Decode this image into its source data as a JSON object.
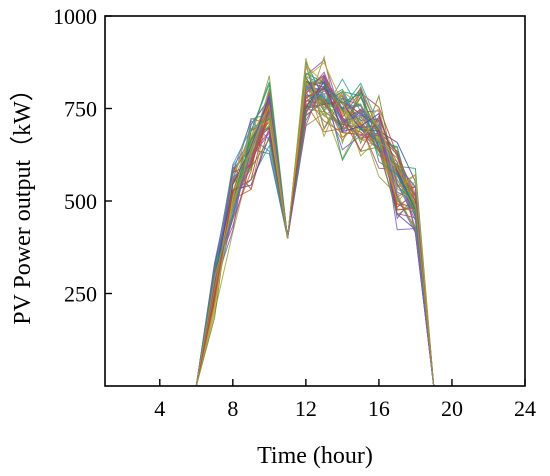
{
  "chart_data": {
    "type": "line",
    "xlabel": "Time (hour)",
    "ylabel": "PV Power output（kW）",
    "xlim": [
      1,
      24
    ],
    "ylim": [
      0,
      1000
    ],
    "xticks": [
      4,
      8,
      12,
      16,
      20,
      24
    ],
    "yticks": [
      250,
      500,
      750,
      1000
    ],
    "grid": false,
    "legend": "none",
    "x": [
      6,
      7,
      8,
      9,
      10,
      11,
      12,
      13,
      14,
      15,
      16,
      17,
      18,
      19
    ],
    "series_count": 60,
    "series_colors": [
      "#5b6fd6",
      "#8a9a3a",
      "#c06a2a",
      "#3aa0a0",
      "#b04a7a",
      "#6a8a2a",
      "#d0a030",
      "#4a4aa0",
      "#2a9a5a",
      "#c04040",
      "#7a5ac0",
      "#a0a040"
    ],
    "series_band": {
      "min": [
        0,
        150,
        380,
        480,
        600,
        400,
        680,
        640,
        590,
        580,
        560,
        400,
        380,
        0
      ],
      "max": [
        0,
        380,
        650,
        780,
        850,
        400,
        920,
        920,
        860,
        845,
        810,
        680,
        620,
        0
      ],
      "typical": [
        0,
        270,
        520,
        640,
        740,
        400,
        800,
        790,
        740,
        720,
        680,
        560,
        490,
        0
      ]
    }
  }
}
